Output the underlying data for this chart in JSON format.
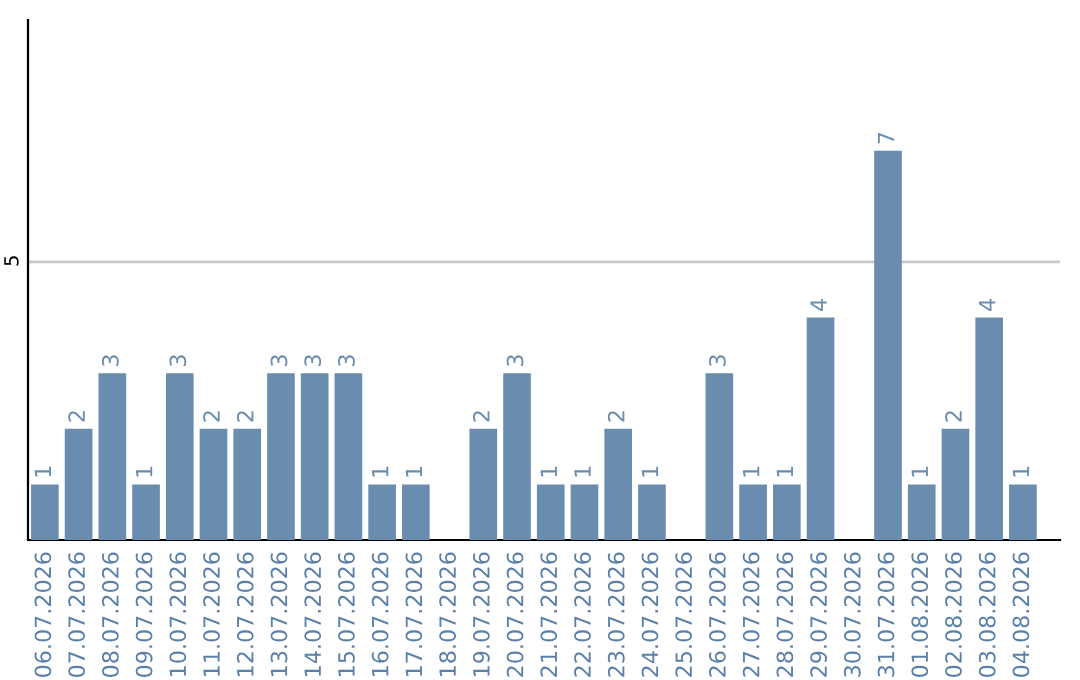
{
  "chart_data": {
    "type": "bar",
    "categories": [
      "06.07.2026",
      "07.07.2026",
      "08.07.2026",
      "09.07.2026",
      "10.07.2026",
      "11.07.2026",
      "12.07.2026",
      "13.07.2026",
      "14.07.2026",
      "15.07.2026",
      "16.07.2026",
      "17.07.2026",
      "18.07.2026",
      "19.07.2026",
      "20.07.2026",
      "21.07.2026",
      "22.07.2026",
      "23.07.2026",
      "24.07.2026",
      "25.07.2026",
      "26.07.2026",
      "27.07.2026",
      "28.07.2026",
      "29.07.2026",
      "30.07.2026",
      "31.07.2026",
      "01.08.2026",
      "02.08.2026",
      "03.08.2026",
      "04.08.2026"
    ],
    "values": [
      1,
      2,
      3,
      1,
      3,
      2,
      2,
      3,
      3,
      3,
      1,
      1,
      0,
      2,
      3,
      1,
      1,
      2,
      1,
      0,
      3,
      1,
      1,
      4,
      0,
      7,
      1,
      2,
      4,
      1
    ],
    "value_labels": [
      "1",
      "2",
      "3",
      "1",
      "3",
      "2",
      "2",
      "3",
      "3",
      "3",
      "1",
      "1",
      null,
      "2",
      "3",
      "1",
      "1",
      "2",
      "1",
      null,
      "3",
      "1",
      "1",
      "4",
      null,
      "7",
      "1",
      "2",
      "4",
      "1"
    ],
    "color": "#6a8caf",
    "ylim": [
      0,
      9.35
    ],
    "yticks": [
      5
    ],
    "grid": "y"
  }
}
